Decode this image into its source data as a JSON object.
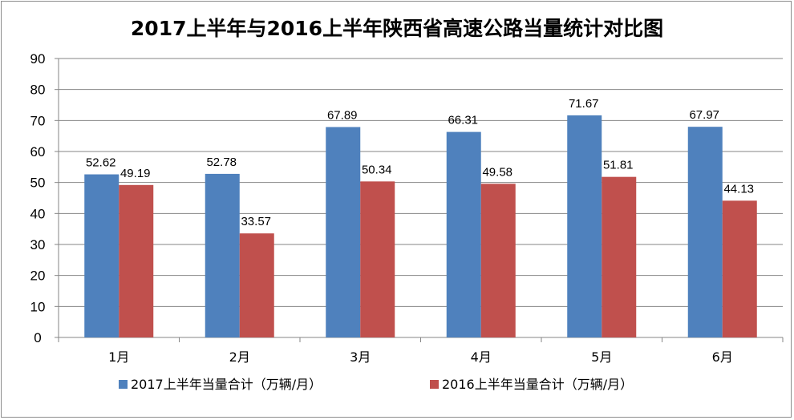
{
  "chart_data": {
    "type": "bar",
    "title": "2017上半年与2016上半年陕西省高速公路当量统计对比图",
    "categories": [
      "1月",
      "2月",
      "3月",
      "4月",
      "5月",
      "6月"
    ],
    "series": [
      {
        "name": "2017上半年当量合计（万辆/月）",
        "color": "#4F81BD",
        "values": [
          52.62,
          52.78,
          67.89,
          66.31,
          71.67,
          67.97
        ]
      },
      {
        "name": "2016上半年当量合计（万辆/月）",
        "color": "#C0504D",
        "values": [
          49.19,
          33.57,
          50.34,
          49.58,
          51.81,
          44.13
        ]
      }
    ],
    "ylim": [
      0,
      90
    ],
    "yticks": [
      0,
      10,
      20,
      30,
      40,
      50,
      60,
      70,
      80,
      90
    ],
    "grid": true,
    "legend": "bottom",
    "xlabel": "",
    "ylabel": ""
  }
}
